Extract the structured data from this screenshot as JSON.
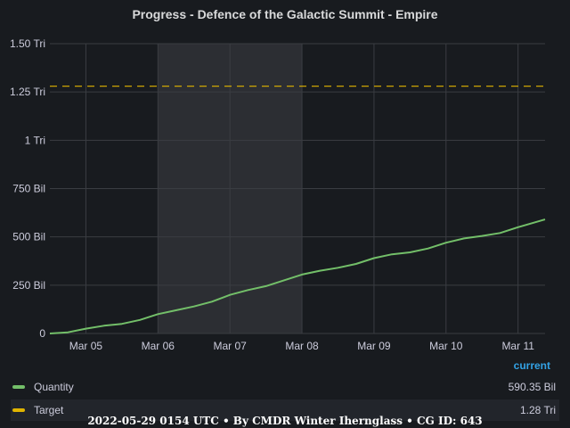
{
  "colors": {
    "background": "#181b1f",
    "quantity": "#73bf69",
    "target": "#e0b400",
    "highlight": "#2c2e33",
    "grid": "#3a3d42"
  },
  "chart_data": {
    "type": "line",
    "title": "Progress - Defence of the Galactic Summit - Empire",
    "x_ticks": [
      "Mar 05",
      "Mar 06",
      "Mar 07",
      "Mar 08",
      "Mar 09",
      "Mar 10",
      "Mar 11"
    ],
    "y_ticks": [
      "0",
      "250 Bil",
      "500 Bil",
      "750 Bil",
      "1 Tri",
      "1.25 Tri",
      "1.50 Tri"
    ],
    "ylim": [
      0,
      1500
    ],
    "y_unit": "Bil",
    "x_range": [
      "2022-03-04T12:00",
      "2022-03-11T09:00"
    ],
    "highlight_range": [
      "2022-03-06T00:00",
      "2022-03-08T00:00"
    ],
    "grid": true,
    "legend_placement": "bottom",
    "series": [
      {
        "name": "Quantity",
        "style": "solid",
        "points": [
          [
            "2022-03-04T12:00",
            0
          ],
          [
            "2022-03-04T18:00",
            6
          ],
          [
            "2022-03-05T00:00",
            25
          ],
          [
            "2022-03-05T06:00",
            40
          ],
          [
            "2022-03-05T12:00",
            50
          ],
          [
            "2022-03-05T18:00",
            70
          ],
          [
            "2022-03-06T00:00",
            100
          ],
          [
            "2022-03-06T06:00",
            120
          ],
          [
            "2022-03-06T12:00",
            140
          ],
          [
            "2022-03-06T18:00",
            165
          ],
          [
            "2022-03-07T00:00",
            200
          ],
          [
            "2022-03-07T06:00",
            225
          ],
          [
            "2022-03-07T12:00",
            245
          ],
          [
            "2022-03-07T18:00",
            275
          ],
          [
            "2022-03-08T00:00",
            305
          ],
          [
            "2022-03-08T06:00",
            325
          ],
          [
            "2022-03-08T12:00",
            340
          ],
          [
            "2022-03-08T18:00",
            360
          ],
          [
            "2022-03-09T00:00",
            390
          ],
          [
            "2022-03-09T06:00",
            410
          ],
          [
            "2022-03-09T12:00",
            420
          ],
          [
            "2022-03-09T18:00",
            440
          ],
          [
            "2022-03-10T00:00",
            470
          ],
          [
            "2022-03-10T06:00",
            492
          ],
          [
            "2022-03-10T12:00",
            505
          ],
          [
            "2022-03-10T18:00",
            520
          ],
          [
            "2022-03-11T00:00",
            550
          ],
          [
            "2022-03-11T09:00",
            590.35
          ]
        ]
      },
      {
        "name": "Target",
        "style": "dashed",
        "points": [
          [
            "2022-03-04T12:00",
            1280
          ],
          [
            "2022-03-11T09:00",
            1280
          ]
        ]
      }
    ]
  },
  "legend": {
    "header": "current",
    "items": [
      {
        "name": "Quantity",
        "value": "590.35 Bil"
      },
      {
        "name": "Target",
        "value": "1.28 Tri"
      }
    ]
  },
  "footer": "2022-05-29 0154 UTC • By CMDR Winter Ihernglаss • CG ID: 643"
}
